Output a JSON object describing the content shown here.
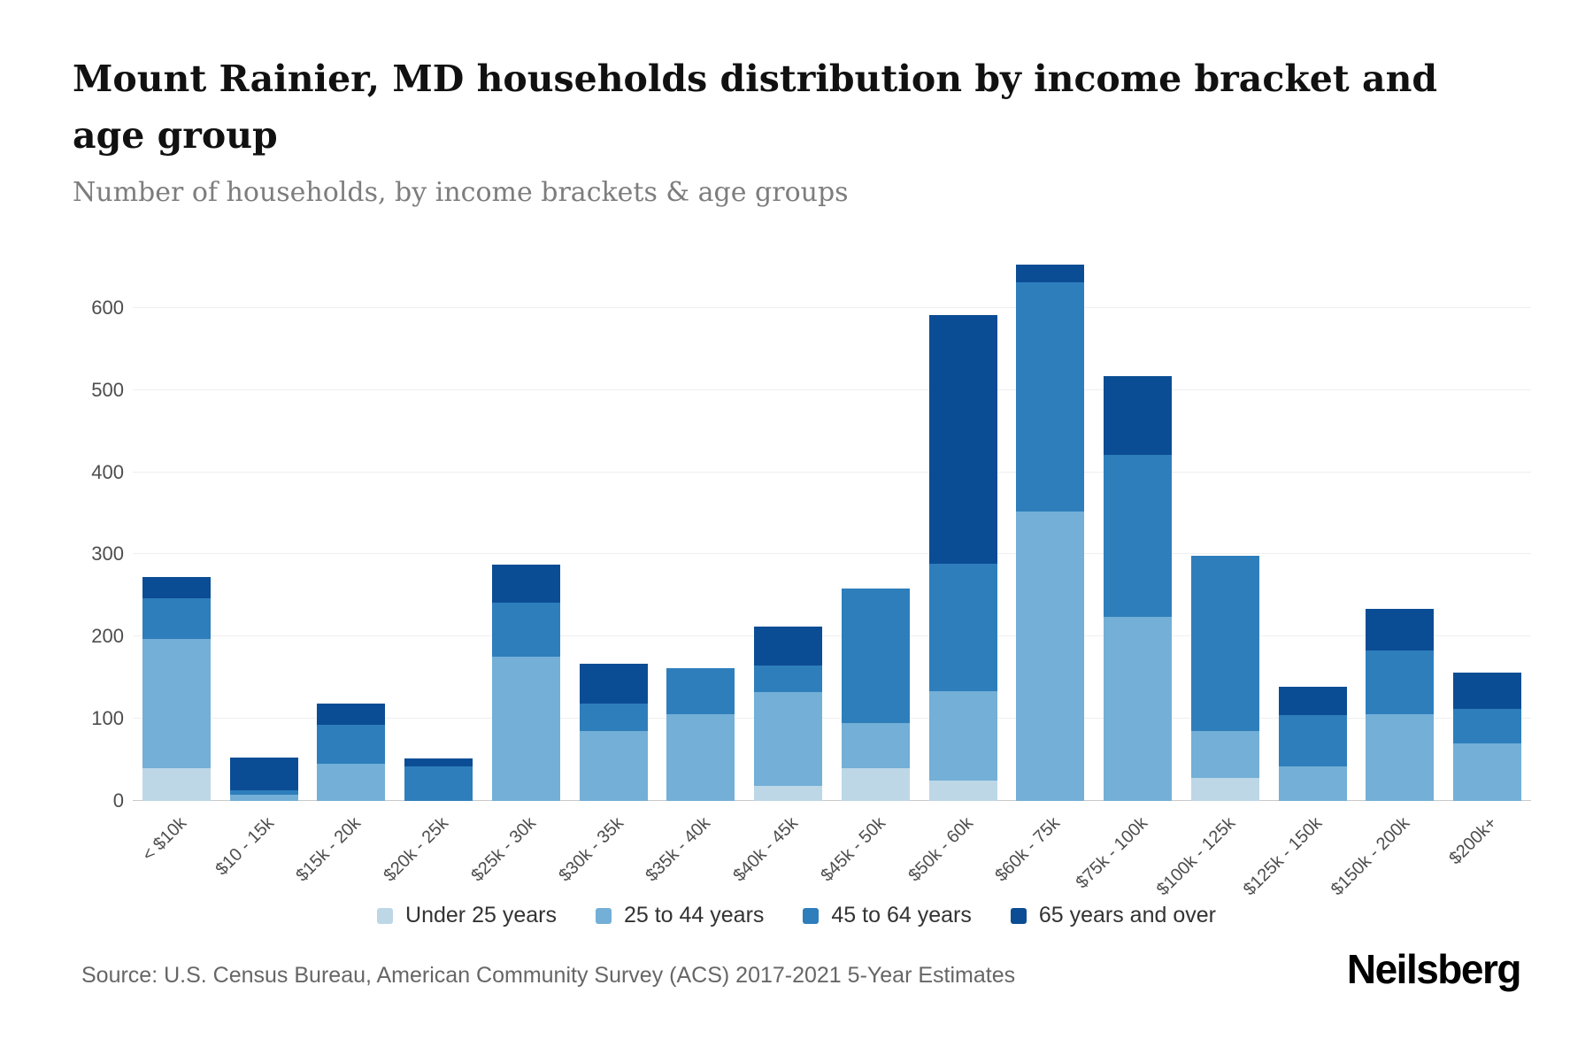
{
  "header": {
    "title": "Mount Rainier, MD households distribution by income bracket and age group",
    "subtitle": "Number of households, by income brackets & age groups"
  },
  "footer": {
    "source": "Source: U.S. Census Bureau, American Community Survey (ACS) 2017-2021 5-Year Estimates",
    "brand": "Neilsberg"
  },
  "chart_data": {
    "type": "bar",
    "stacked": true,
    "categories": [
      "< $10k",
      "$10 - 15k",
      "$15k - 20k",
      "$20k - 25k",
      "$25k - 30k",
      "$30k - 35k",
      "$35k - 40k",
      "$40k - 45k",
      "$45k - 50k",
      "$50k - 60k",
      "$60k - 75k",
      "$75k - 100k",
      "$100k - 125k",
      "$125k - 150k",
      "$150k - 200k",
      "$200k+"
    ],
    "series": [
      {
        "name": "Under 25 years",
        "color": "#bdd7e7",
        "values": [
          40,
          0,
          0,
          0,
          0,
          0,
          0,
          18,
          40,
          25,
          0,
          0,
          28,
          0,
          0,
          0
        ]
      },
      {
        "name": "25 to 44 years",
        "color": "#73afd6",
        "values": [
          157,
          8,
          45,
          0,
          175,
          85,
          105,
          115,
          55,
          108,
          352,
          224,
          57,
          42,
          105,
          70
        ]
      },
      {
        "name": "45 to 64 years",
        "color": "#2e7ebc",
        "values": [
          50,
          5,
          48,
          42,
          66,
          33,
          56,
          32,
          163,
          156,
          279,
          197,
          213,
          63,
          78,
          42
        ]
      },
      {
        "name": "65 years and over",
        "color": "#0b4d94",
        "values": [
          25,
          40,
          25,
          10,
          46,
          49,
          0,
          47,
          0,
          302,
          21,
          96,
          0,
          34,
          51,
          44
        ]
      }
    ],
    "title": "Mount Rainier, MD households distribution by income bracket and age group",
    "xlabel": "",
    "ylabel": "",
    "ylim": [
      0,
      660
    ],
    "yticks": [
      0,
      100,
      200,
      300,
      400,
      500,
      600
    ],
    "grid": true,
    "legend_position": "bottom"
  }
}
